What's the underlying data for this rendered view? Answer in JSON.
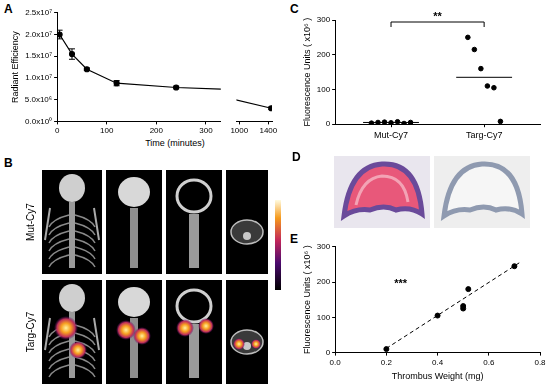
{
  "chart_data": [
    {
      "panel": "A",
      "type": "line",
      "x_label": "Time (minutes)",
      "y_label": "Radiant Efficiency",
      "x": [
        5,
        30,
        60,
        120,
        240,
        1440
      ],
      "values": [
        20000000,
        15500000,
        12000000,
        8800000,
        7800000,
        3000000
      ],
      "errors": [
        1000000,
        1200000,
        300000,
        600000,
        300000,
        300000
      ],
      "xlim": [
        0,
        1450
      ],
      "x_break": [
        330,
        960
      ],
      "xticks": [
        0,
        100,
        200,
        300,
        1000,
        1400
      ],
      "ylim": [
        0,
        25000000
      ],
      "yticks": [
        {
          "value": 0,
          "label": "0.0x10⁰"
        },
        {
          "value": 5000000,
          "label": "5.0x10⁶"
        },
        {
          "value": 10000000,
          "label": "1.0x10⁷"
        },
        {
          "value": 15000000,
          "label": "1.5x10⁷"
        },
        {
          "value": 20000000,
          "label": "2.0x10⁷"
        },
        {
          "value": 25000000,
          "label": "2.5x10⁷"
        }
      ],
      "color": "#000000",
      "marker": "circle",
      "grid": false
    },
    {
      "panel": "C",
      "type": "scatter",
      "y_label": "Fluorescence Units ( x10⁶ )",
      "categories": [
        "Mut-Cy7",
        "Targ-Cy7"
      ],
      "values": [
        [
          3,
          5,
          6,
          4,
          7,
          2,
          5
        ],
        [
          250,
          215,
          160,
          110,
          105,
          8
        ]
      ],
      "medians": [
        5,
        135
      ],
      "annotation": "**",
      "ylim": [
        0,
        300
      ],
      "yticks": [
        0,
        100,
        200,
        300
      ],
      "color": "#000000",
      "marker": "circle",
      "grid": false
    },
    {
      "panel": "E",
      "type": "scatter",
      "x_label": "Thrombus Weight (mg)",
      "y_label": "Fluorescence Units ( x10⁶ )",
      "series": [
        {
          "x": [
            0.2,
            0.4,
            0.5,
            0.5,
            0.52,
            0.7
          ],
          "values": [
            10,
            105,
            125,
            132,
            180,
            245
          ],
          "color": "#000000",
          "marker": "circle"
        },
        {
          "type": "line",
          "x": [
            0.2,
            0.72
          ],
          "values": [
            12,
            255
          ],
          "color": "#000000",
          "line_style": "dashed"
        }
      ],
      "annotation": "***",
      "xlim": [
        0,
        0.8
      ],
      "xticks": [
        {
          "value": 0,
          "label": "0.0"
        },
        0.2,
        0.4,
        0.6,
        0.8
      ],
      "ylim": [
        0,
        300
      ],
      "yticks": [
        0,
        100,
        200,
        300
      ],
      "grid": false
    }
  ],
  "images": [
    {
      "panel": "B",
      "rows": [
        "Mut-Cy7",
        "Targ-Cy7"
      ]
    },
    {
      "panel": "D"
    }
  ]
}
